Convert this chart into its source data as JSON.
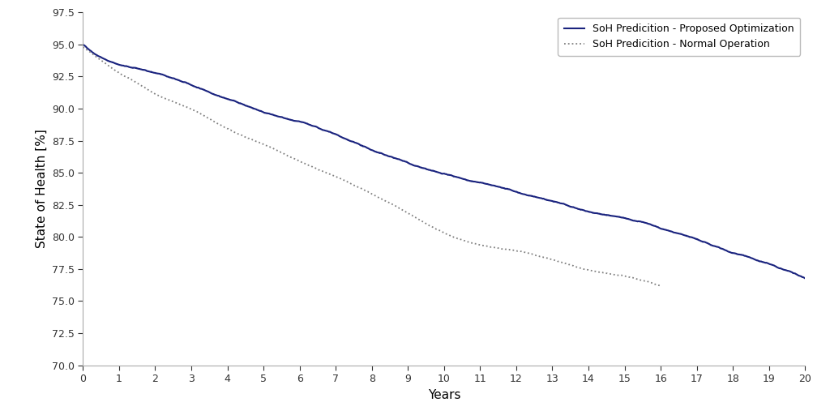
{
  "title": "",
  "xlabel": "Years",
  "ylabel": "State of Health [%]",
  "xlim": [
    0,
    20
  ],
  "ylim": [
    70.0,
    97.5
  ],
  "yticks": [
    70.0,
    72.5,
    75.0,
    77.5,
    80.0,
    82.5,
    85.0,
    87.5,
    90.0,
    92.5,
    95.0,
    97.5
  ],
  "xticks": [
    0,
    1,
    2,
    3,
    4,
    5,
    6,
    7,
    8,
    9,
    10,
    11,
    12,
    13,
    14,
    15,
    16,
    17,
    18,
    19,
    20
  ],
  "opt_color": "#1a237e",
  "normal_color": "#808080",
  "opt_label": "SoH Predicition - Proposed Optimization",
  "normal_label": "SoH Predicition - Normal Operation",
  "background_color": "#ffffff",
  "figsize": [
    10.24,
    5.12
  ],
  "dpi": 100,
  "opt_x_ctrl": [
    0,
    1,
    2,
    3,
    4,
    5,
    6,
    7,
    8,
    9,
    10,
    11,
    12,
    13,
    14,
    15,
    16,
    17,
    18,
    19,
    20
  ],
  "opt_y_ctrl": [
    95.0,
    93.5,
    92.8,
    91.8,
    90.8,
    89.8,
    88.9,
    87.8,
    86.5,
    85.5,
    84.5,
    83.8,
    83.0,
    82.3,
    81.5,
    81.0,
    80.2,
    79.3,
    78.2,
    77.3,
    76.2
  ],
  "norm_x_ctrl": [
    0,
    0.5,
    1,
    1.5,
    2,
    3,
    4,
    5,
    6,
    7,
    8,
    9,
    10,
    11,
    12,
    13,
    14,
    15,
    16
  ],
  "norm_y_ctrl": [
    94.8,
    93.8,
    92.8,
    92.0,
    91.2,
    90.0,
    88.5,
    87.3,
    86.0,
    84.8,
    83.5,
    82.0,
    80.5,
    79.5,
    79.0,
    78.3,
    77.5,
    77.0,
    76.3
  ]
}
